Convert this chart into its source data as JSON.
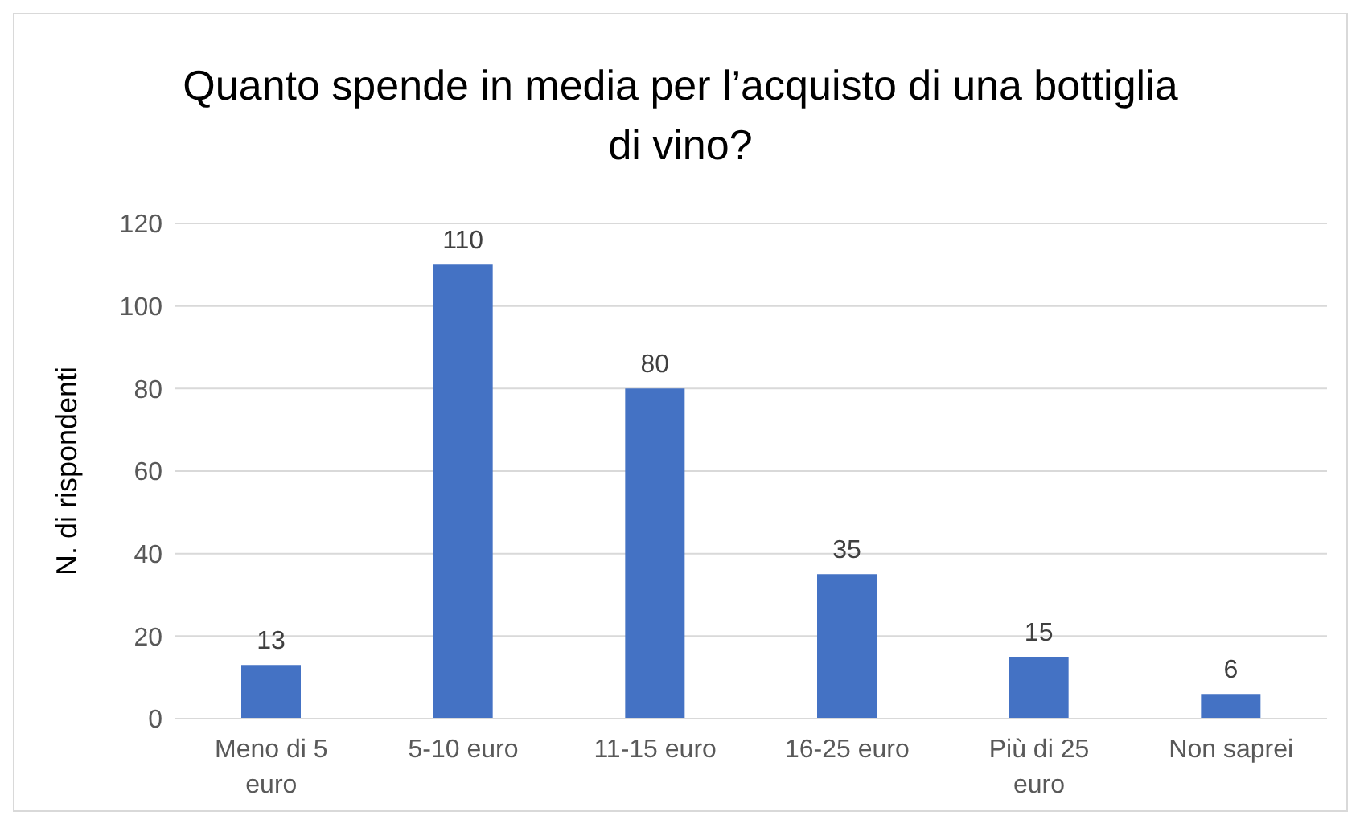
{
  "chart_data": {
    "type": "bar",
    "title": "Quanto spende in media per l’acquisto di una bottiglia di vino?",
    "ylabel": "N. di rispondenti",
    "categories": [
      "Meno di 5 euro",
      "5-10 euro",
      "11-15 euro",
      "16-25 euro",
      "Più di 25 euro",
      "Non saprei"
    ],
    "values": [
      13,
      110,
      80,
      35,
      15,
      6
    ],
    "color": "#4472c4",
    "ylim": [
      0,
      120
    ],
    "yticks": [
      0,
      20,
      40,
      60,
      80,
      100,
      120
    ],
    "grid": "y",
    "data_labels": true,
    "legend": false
  }
}
